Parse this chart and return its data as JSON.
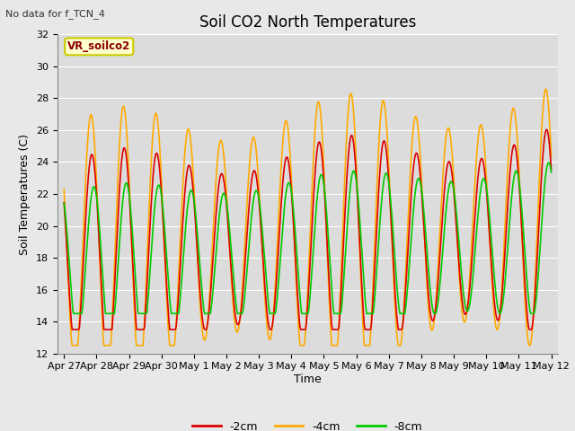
{
  "title": "Soil CO2 North Temperatures",
  "no_data_label": "No data for f_TCN_4",
  "xlabel": "Time",
  "ylabel": "Soil Temperatures (C)",
  "legend_label": "VR_soilco2",
  "ylim": [
    12,
    32
  ],
  "yticks": [
    12,
    14,
    16,
    18,
    20,
    22,
    24,
    26,
    28,
    30,
    32
  ],
  "background_color": "#e8e8e8",
  "plot_bg_color": "#dcdcdc",
  "grid_color": "#ffffff",
  "series_2cm": {
    "color": "#dd0000",
    "lw": 1.2
  },
  "series_4cm": {
    "color": "#ffaa00",
    "lw": 1.2
  },
  "series_8cm": {
    "color": "#00cc00",
    "lw": 1.2
  },
  "x_labels": [
    "Apr 27",
    "Apr 28",
    "Apr 29",
    "Apr 30",
    "May 1",
    "May 2",
    "May 3",
    "May 4",
    "May 5",
    "May 6",
    "May 7",
    "May 8",
    "May 9",
    "May 10",
    "May 11",
    "May 12"
  ],
  "title_fontsize": 12,
  "axis_fontsize": 9,
  "tick_fontsize": 8
}
